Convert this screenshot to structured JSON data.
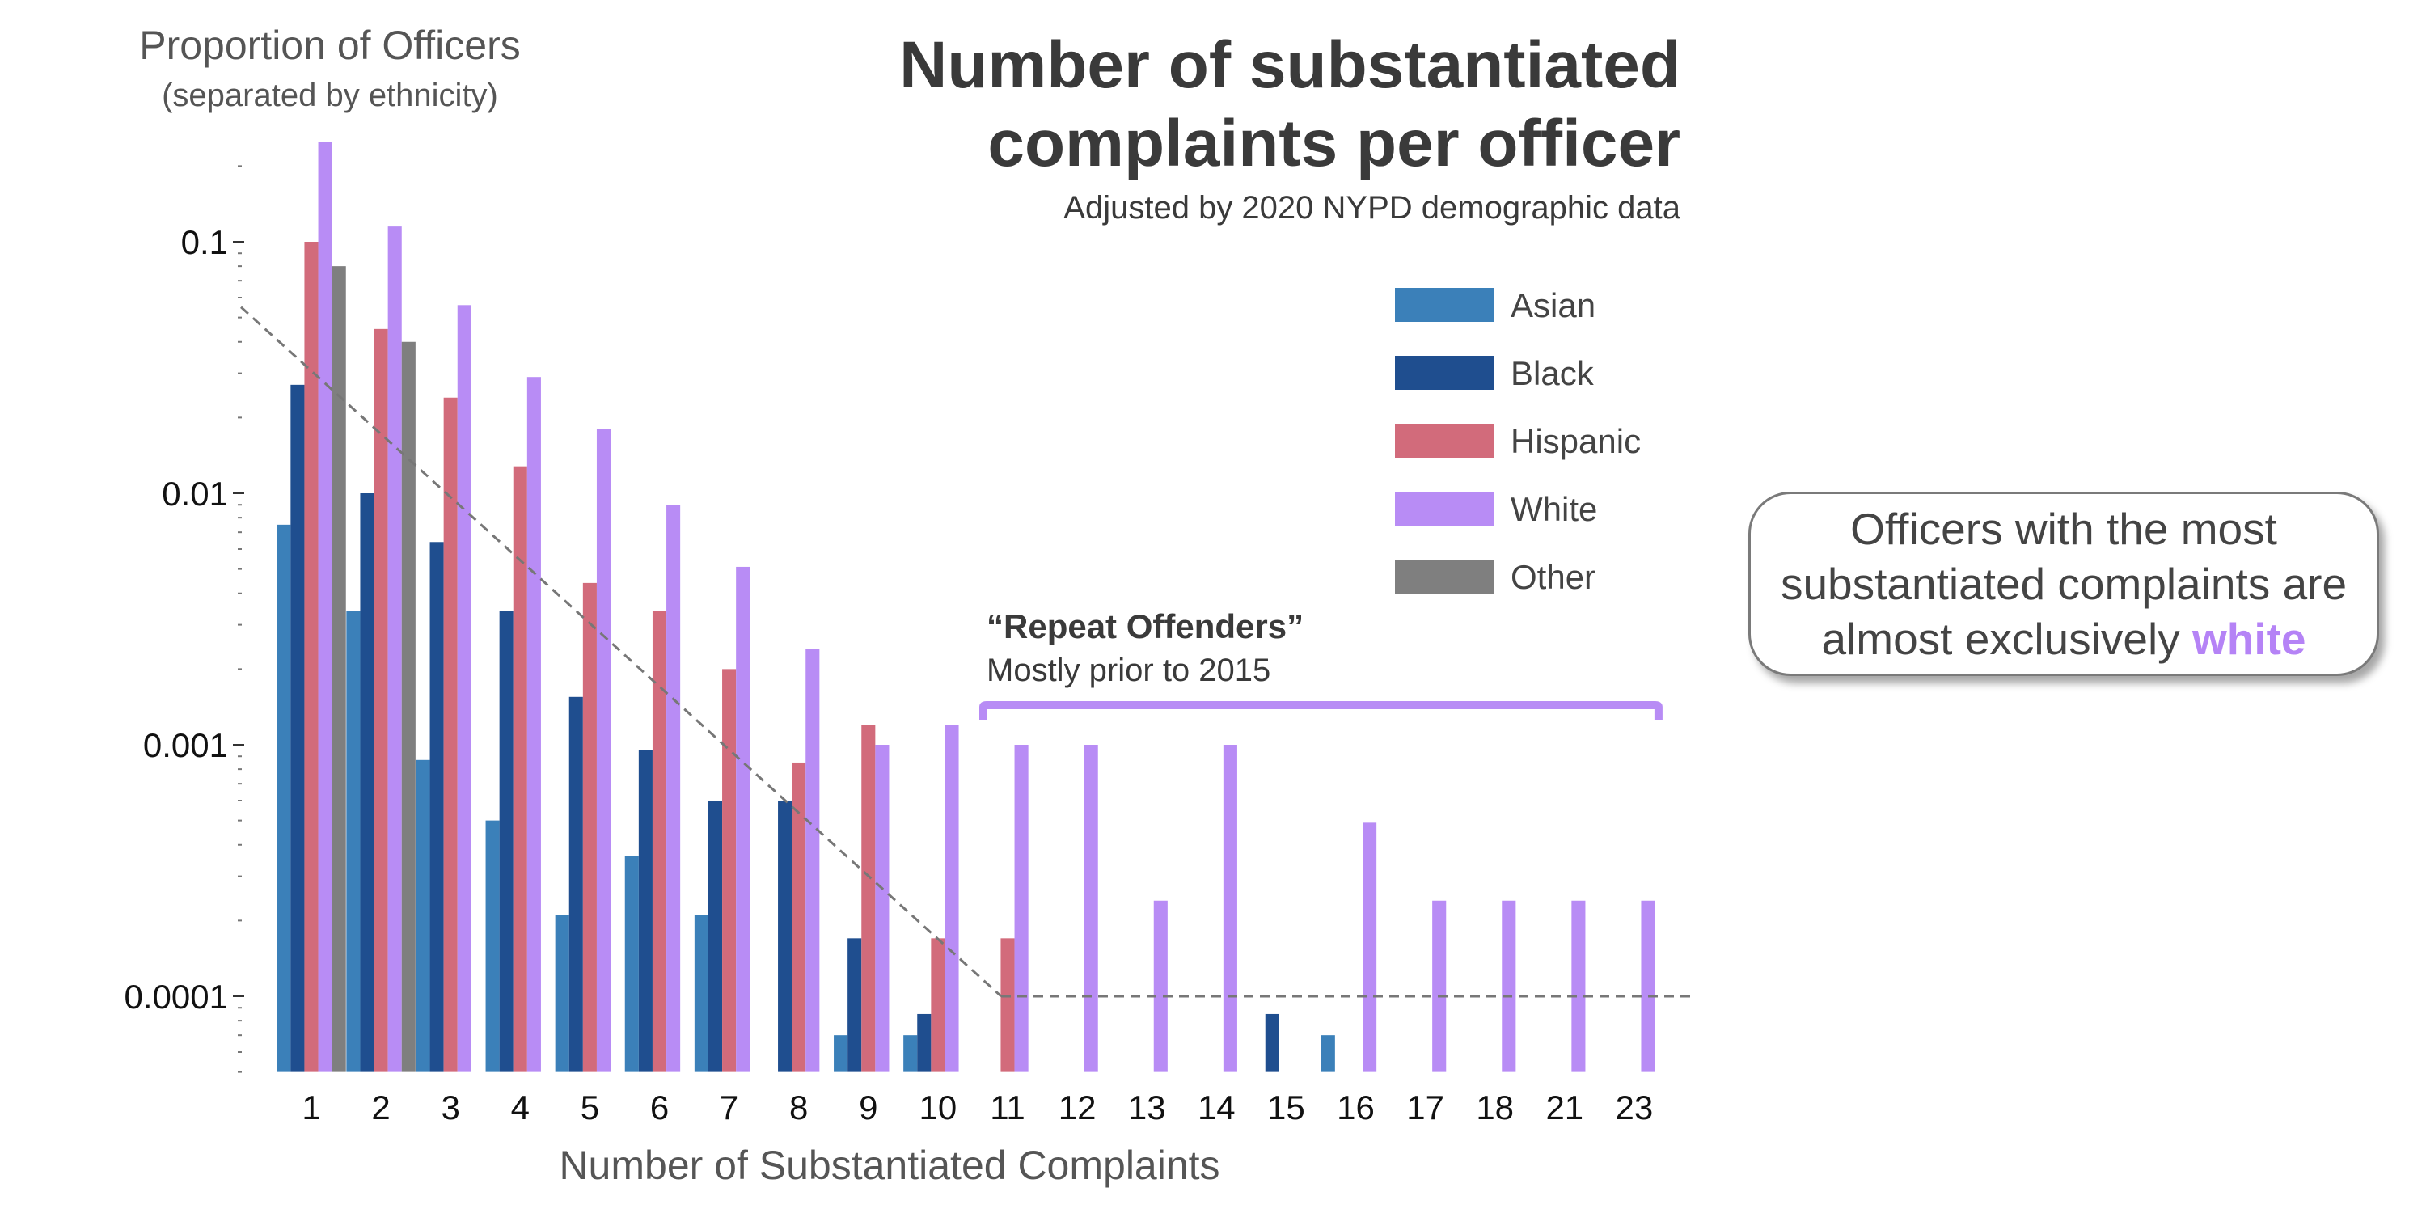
{
  "chart_data": {
    "type": "bar",
    "title": "Number of substantiated complaints per officer",
    "subtitle": "Adjusted by 2020 NYPD demographic data",
    "ylabel": "Proportion of Officers",
    "ylabel_sub": "(separated by ethnicity)",
    "xlabel": "Number of Substantiated Complaints",
    "yscale": "log",
    "ylim": [
      5e-05,
      0.3
    ],
    "yticks": [
      {
        "value": 0.1,
        "label": "0.1"
      },
      {
        "value": 0.01,
        "label": "0.01"
      },
      {
        "value": 0.001,
        "label": "0.001"
      },
      {
        "value": 0.0001,
        "label": "0.0001"
      }
    ],
    "grid": false,
    "legend_position": "top-right",
    "categories": [
      "1",
      "2",
      "3",
      "4",
      "5",
      "6",
      "7",
      "8",
      "9",
      "10",
      "11",
      "12",
      "13",
      "14",
      "15",
      "16",
      "17",
      "18",
      "21",
      "23"
    ],
    "series": [
      {
        "name": "Asian",
        "color": "#3b80b9",
        "values": [
          0.0075,
          0.0034,
          0.00087,
          0.0005,
          0.00021,
          0.00036,
          0.00021,
          null,
          7e-05,
          7e-05,
          null,
          null,
          null,
          null,
          null,
          7e-05,
          null,
          null,
          null,
          null
        ]
      },
      {
        "name": "Black",
        "color": "#1f4e8f",
        "values": [
          0.027,
          0.01,
          0.0064,
          0.0034,
          0.00155,
          0.00095,
          0.0006,
          0.0006,
          0.00017,
          8.5e-05,
          null,
          null,
          null,
          null,
          8.5e-05,
          null,
          null,
          null,
          null,
          null
        ]
      },
      {
        "name": "Hispanic",
        "color": "#d26b7b",
        "values": [
          0.1,
          0.045,
          0.024,
          0.0128,
          0.0044,
          0.0034,
          0.002,
          0.00085,
          0.0012,
          0.00017,
          0.00017,
          null,
          null,
          null,
          null,
          null,
          null,
          null,
          null,
          null
        ]
      },
      {
        "name": "White",
        "color": "#b88cf5",
        "values": [
          0.25,
          0.115,
          0.056,
          0.029,
          0.018,
          0.009,
          0.0051,
          0.0024,
          0.001,
          0.0012,
          0.001,
          0.001,
          0.00024,
          0.001,
          null,
          0.00049,
          0.00024,
          0.00024,
          0.00024,
          0.00024
        ]
      },
      {
        "name": "Other",
        "color": "#7f7f7f",
        "values": [
          0.08,
          0.04,
          null,
          null,
          null,
          null,
          null,
          null,
          null,
          null,
          null,
          null,
          null,
          null,
          null,
          null,
          null,
          null,
          null,
          null
        ]
      }
    ],
    "reference_lines": [
      {
        "style": "dashed",
        "from": {
          "x": "1",
          "y": 0.055
        },
        "to": {
          "x": "11",
          "y": 0.0001
        }
      },
      {
        "style": "dashed",
        "from": {
          "x": "11",
          "y": 0.0001
        },
        "to": {
          "x": "23",
          "y": 0.0001
        }
      }
    ],
    "annotations": {
      "bracket_title": "“Repeat Offenders”",
      "bracket_subtitle": "Mostly prior to 2015",
      "bracket_span": [
        "11",
        "23"
      ],
      "bracket_color": "#b88cf5"
    }
  },
  "callout": {
    "text_lines": [
      "Officers with the most",
      "substantiated complaints are",
      "almost exclusively "
    ],
    "highlight": "white",
    "highlight_color": "#b583f6"
  }
}
